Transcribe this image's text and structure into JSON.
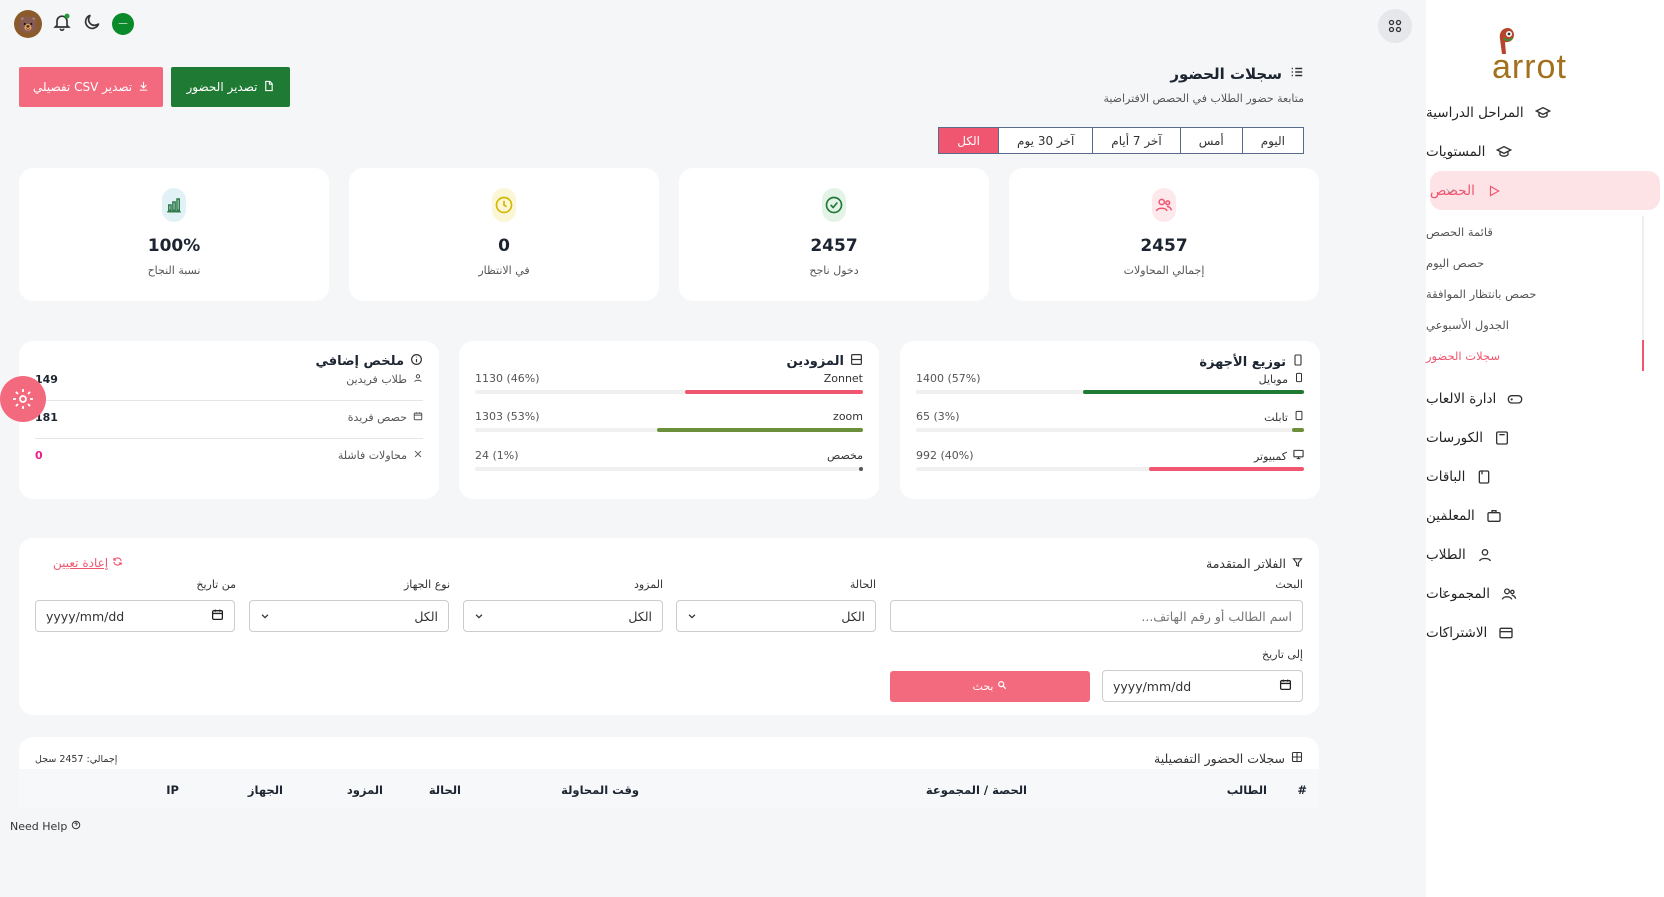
{
  "brand": {
    "logo_text": "arrot",
    "accent": "#f0566f",
    "green": "#1f7a33"
  },
  "sidebar": {
    "items": [
      {
        "label": "المراحل الدراسية",
        "icon": "graduation-cap-icon"
      },
      {
        "label": "المستويات",
        "icon": "graduation-cap-icon"
      },
      {
        "label": "الحصص",
        "icon": "play-icon",
        "active": true
      },
      {
        "label": "ادارة الالعاب",
        "icon": "gamepad-icon"
      },
      {
        "label": "الكورسات",
        "icon": "book-icon"
      },
      {
        "label": "الباقات",
        "icon": "package-icon"
      },
      {
        "label": "المعلمين",
        "icon": "briefcase-icon"
      },
      {
        "label": "الطلاب",
        "icon": "user-icon"
      },
      {
        "label": "المجموعات",
        "icon": "users-icon"
      },
      {
        "label": "الاشتراكات",
        "icon": "card-icon"
      }
    ],
    "submenu": [
      {
        "label": "قائمة الحصص"
      },
      {
        "label": "حصص اليوم"
      },
      {
        "label": "حصص بانتظار الموافقة"
      },
      {
        "label": "الجدول الأسبوعي"
      },
      {
        "label": "سجلات الحضور",
        "active": true
      }
    ]
  },
  "header": {
    "title": "سجلات الحضور",
    "subtitle": "متابعة حضور الطلاب في الحصص الافتراضية",
    "export_label": "تصدير الحضور",
    "csv_label": "تصدير CSV تفصيلي"
  },
  "tabs": [
    {
      "label": "اليوم"
    },
    {
      "label": "أمس"
    },
    {
      "label": "آخر 7 أيام"
    },
    {
      "label": "آخر 30 يوم"
    },
    {
      "label": "الكل",
      "active": true
    }
  ],
  "stats": [
    {
      "value": "2457",
      "label": "إجمالي المحاولات",
      "color": "#f0566f",
      "bg": "#fde8ec"
    },
    {
      "value": "2457",
      "label": "دخول ناجح",
      "color": "#1f7a33",
      "bg": "#e4f3e8"
    },
    {
      "value": "0",
      "label": "في الانتظار",
      "color": "#d4b800",
      "bg": "#fbf6d6"
    },
    {
      "value": "100%",
      "label": "نسبة النجاح",
      "color": "#2f7a4a",
      "bg": "#e1f2f7"
    }
  ],
  "devices": {
    "title": "توزيع الأجهزة",
    "rows": [
      {
        "name": "موبايل",
        "value": "1400 (57%)",
        "percent": 57,
        "color": "#1f7a33"
      },
      {
        "name": "تابلت",
        "value": "65 (3%)",
        "percent": 3,
        "color": "#6b8f3a"
      },
      {
        "name": "كمبيوتر",
        "value": "992 (40%)",
        "percent": 40,
        "color": "#f0566f"
      }
    ]
  },
  "providers": {
    "title": "المزودين",
    "rows": [
      {
        "name": "Zonnet",
        "value": "1130 (46%)",
        "percent": 46,
        "color": "#f0566f"
      },
      {
        "name": "zoom",
        "value": "1303 (53%)",
        "percent": 53,
        "color": "#6b8f3a"
      },
      {
        "name": "مخصص",
        "value": "24 (1%)",
        "percent": 1,
        "color": "#555555"
      }
    ]
  },
  "summary": {
    "title": "ملخص إضافي",
    "rows": [
      {
        "name": "طلاب فريدين",
        "value": "149",
        "color": "#1b2430"
      },
      {
        "name": "حصص فريدة",
        "value": "181",
        "color": "#1b2430"
      },
      {
        "name": "محاولات فاشلة",
        "value": "0",
        "color": "#e91e8c"
      }
    ]
  },
  "filters": {
    "title": "الفلاتر المتقدمة",
    "reset_label": "إعادة تعيين",
    "search_label": "البحث",
    "search_placeholder": "اسم الطالب أو رقم الهاتف...",
    "status_label": "الحالة",
    "status_value": "الكل",
    "provider_label": "المزود",
    "provider_value": "الكل",
    "device_label": "نوع الجهاز",
    "device_value": "الكل",
    "from_label": "من تاريخ",
    "from_value": "yyyy/mm/dd",
    "to_label": "إلى تاريخ",
    "to_value": "yyyy/mm/dd",
    "search_button": "بحث"
  },
  "records": {
    "title": "سجلات الحضور التفصيلية",
    "total": "إجمالي: 2457 سجل",
    "columns": [
      "#",
      "الطالب",
      "الحصة / المجموعة",
      "وقت المحاولة",
      "الحالة",
      "المزود",
      "الجهاز",
      "IP"
    ]
  },
  "help_label": "Need Help"
}
